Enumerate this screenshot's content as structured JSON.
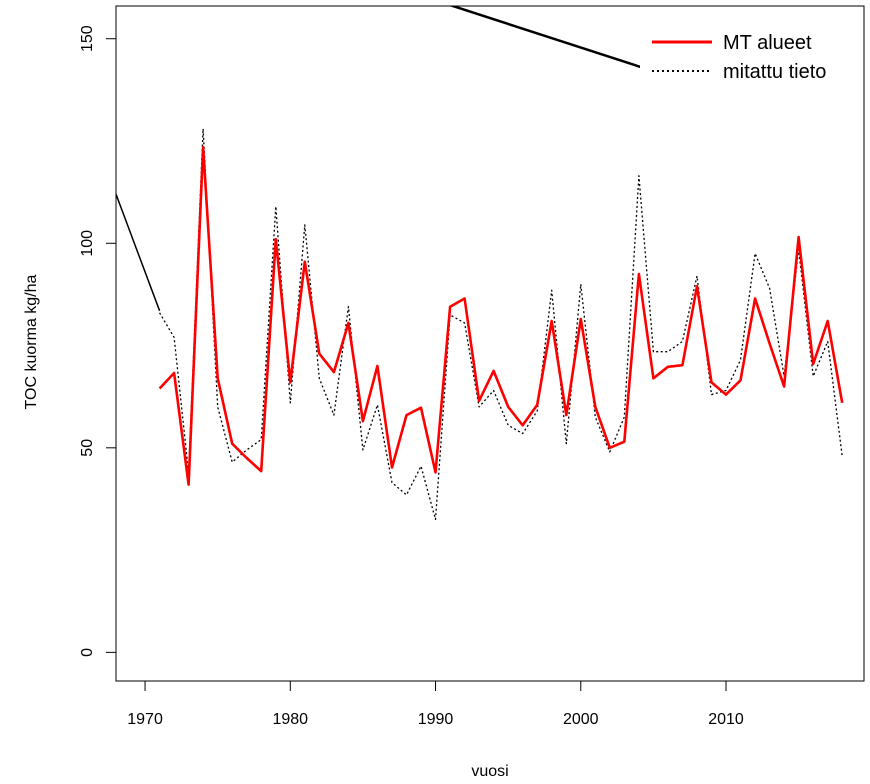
{
  "chart_data": {
    "type": "line",
    "title": "",
    "xlabel": "vuosi",
    "ylabel": "TOC kuorma kg/ha",
    "xlim": [
      1968,
      2019.5
    ],
    "ylim": [
      -7,
      158
    ],
    "x_ticks": [
      "1970",
      "1980",
      "1990",
      "2000",
      "2010"
    ],
    "y_ticks": [
      "0",
      "50",
      "100",
      "150"
    ],
    "legend_position": "top-right",
    "series": [
      {
        "name": "MT alueet",
        "color": "#ff0000",
        "style": "solid",
        "x": [
          1971,
          1972,
          1973,
          1974,
          1975,
          1976,
          1977,
          1978,
          1979,
          1980,
          1981,
          1982,
          1983,
          1984,
          1985,
          1986,
          1987,
          1988,
          1989,
          1990,
          1991,
          1992,
          1993,
          1994,
          1995,
          1996,
          1997,
          1998,
          1999,
          2000,
          2001,
          2002,
          2003,
          2004,
          2005,
          2006,
          2007,
          2008,
          2009,
          2010,
          2011,
          2012,
          2013,
          2014,
          2015,
          2016,
          2017,
          2018
        ],
        "values": [
          64.5,
          68.3,
          41,
          123.5,
          67,
          51,
          47.5,
          44.3,
          101,
          66,
          95.5,
          73,
          68.5,
          80.5,
          56.5,
          70,
          45.2,
          58,
          59.8,
          44,
          84.5,
          86.5,
          61.5,
          68.8,
          60,
          55.5,
          60.5,
          81,
          58,
          81.5,
          60,
          50,
          51.5,
          92.5,
          67,
          69.8,
          70.2,
          89.5,
          66,
          63,
          66.5,
          86.5,
          75.5,
          65,
          101.5,
          70.5,
          81,
          61
        ]
      },
      {
        "name": "mitattu tieto",
        "color": "#000000",
        "style": "dotted",
        "x": [
          1971,
          1972,
          1973,
          1974,
          1975,
          1976,
          1977,
          1978,
          1979,
          1980,
          1981,
          1982,
          1983,
          1984,
          1985,
          1986,
          1987,
          1988,
          1989,
          1990,
          1991,
          1992,
          1993,
          1994,
          1995,
          1996,
          1997,
          1998,
          1999,
          2000,
          2001,
          2002,
          2003,
          2004,
          2005,
          2006,
          2007,
          2008,
          2009,
          2010,
          2011,
          2012,
          2013,
          2014,
          2015,
          2016,
          2017,
          2018
        ],
        "values": [
          83,
          77,
          44,
          128,
          60,
          46.5,
          49.5,
          52,
          109,
          61,
          104.5,
          67,
          58,
          84.5,
          49.5,
          60.5,
          41.5,
          38.5,
          45.5,
          32.5,
          82.5,
          80.5,
          60,
          64,
          55.5,
          53.5,
          59,
          88.5,
          51,
          90,
          57.5,
          49,
          57.5,
          116.5,
          73.5,
          73.5,
          76,
          92,
          63,
          64,
          71.5,
          97.5,
          89,
          67.5,
          98.5,
          67.5,
          76,
          48
        ]
      }
    ],
    "overlay_lines": [
      {
        "color": "#000000",
        "x": [
          1968,
          1971
        ],
        "values": [
          112,
          83.5
        ]
      },
      {
        "color": "#000000",
        "x": [
          1986,
          2005.5
        ],
        "values": [
          164,
          141.5
        ]
      }
    ]
  }
}
